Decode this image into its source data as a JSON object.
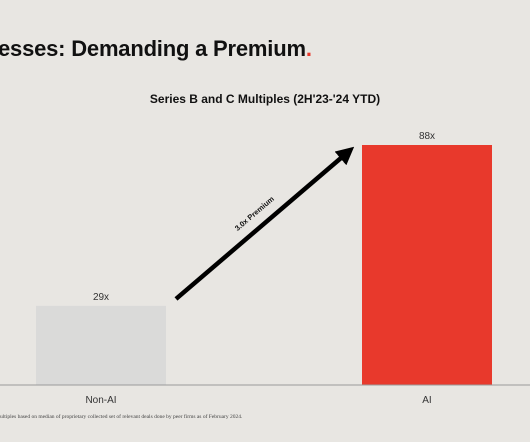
{
  "slide": {
    "title": "esses: Demanding a Premium",
    "title_accent": ".",
    "footnote": "ultiples based on median of proprietary collected set of relevant deals done by peer firms as of February 2024."
  },
  "chart_data": {
    "type": "bar",
    "title": "Series B and C Multiples (2H'23-'24 YTD)",
    "categories": [
      "Non-AI",
      "AI"
    ],
    "values": [
      29,
      88
    ],
    "value_labels": [
      "29x",
      "88x"
    ],
    "colors": [
      "#dadad9",
      "#e8392c"
    ],
    "ylim": [
      0,
      88
    ],
    "grid": false,
    "annotation": {
      "text": "3.0x Premium",
      "from_category": "Non-AI",
      "to_category": "AI"
    }
  }
}
